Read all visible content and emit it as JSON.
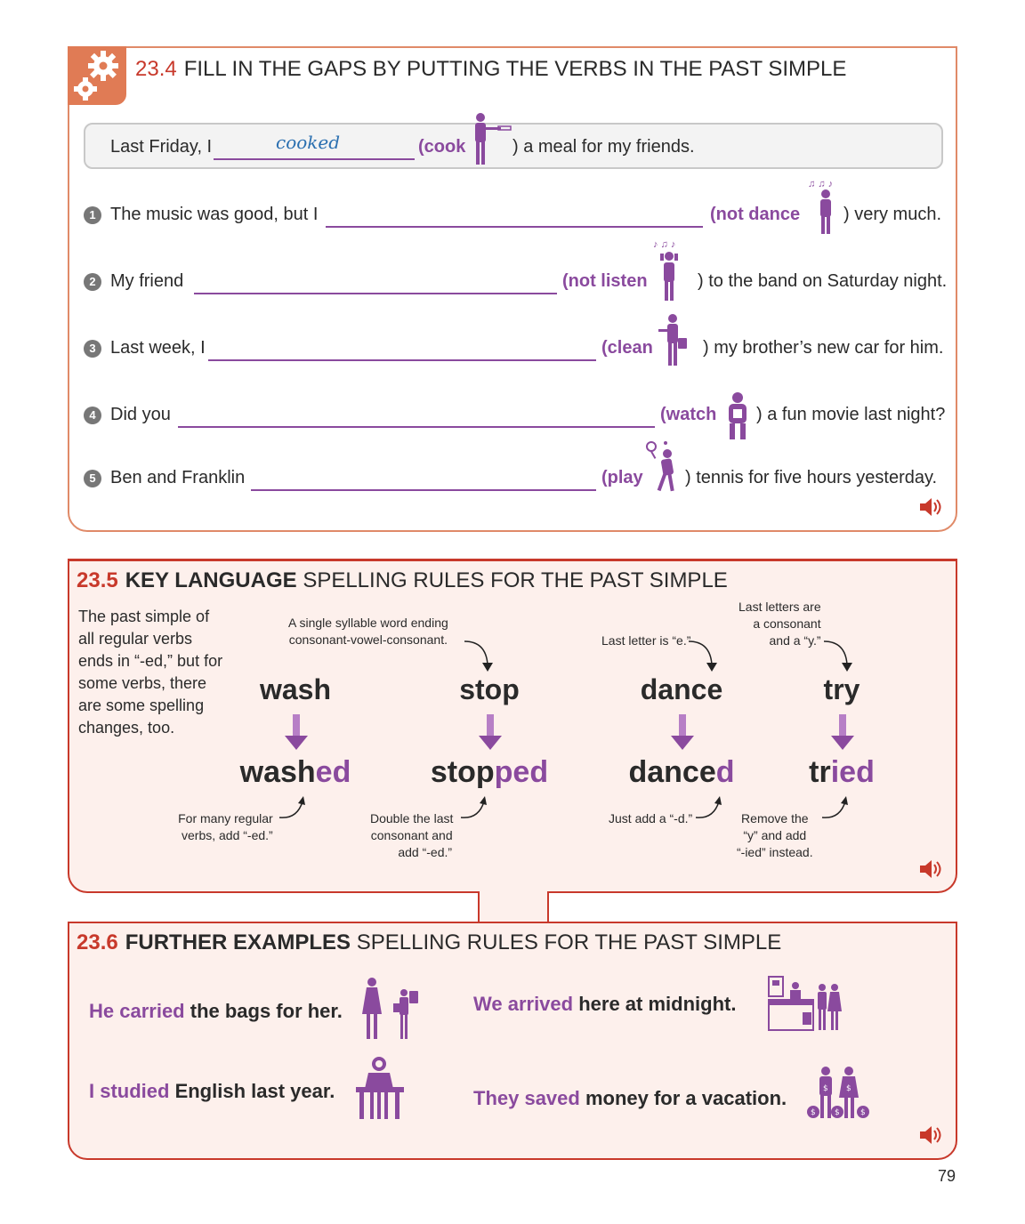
{
  "section4": {
    "number": "23.4",
    "title": "FILL IN THE GAPS BY PUTTING THE VERBS IN THE PAST SIMPLE",
    "example": {
      "before": "Last Friday, I",
      "answer": "cooked",
      "verb": "(cook",
      "after": ") a meal for my friends.",
      "icon": "person-cooking-icon"
    },
    "items": [
      {
        "n": "1",
        "before": "The music was good, but I",
        "verb": "(not dance",
        "after": ") very much.",
        "icon": "person-dancing-icon"
      },
      {
        "n": "2",
        "before": "My friend",
        "verb": "(not listen",
        "after": ") to the band on Saturday night.",
        "icon": "person-covering-ears-icon"
      },
      {
        "n": "3",
        "before": "Last week, I",
        "verb": "(clean",
        "after": ") my brother’s new car for him.",
        "icon": "person-with-bucket-icon"
      },
      {
        "n": "4",
        "before": "Did you",
        "verb": "(watch",
        "after": ") a fun movie last night?",
        "icon": "person-watching-icon"
      },
      {
        "n": "5",
        "before": "Ben and Franklin",
        "verb": "(play",
        "after": ") tennis for five hours yesterday.",
        "icon": "person-playing-tennis-icon"
      }
    ]
  },
  "section5": {
    "number": "23.5",
    "keyword": "KEY LANGUAGE",
    "title": "SPELLING RULES FOR THE PAST SIMPLE",
    "intro": "The past simple of all regular verbs ends in “-ed,” but for some verbs, there are some spelling changes, too.",
    "verbs": [
      {
        "base": "wash",
        "stem": "wash",
        "ending": "ed",
        "note_top": "",
        "note_bottom": [
          "For many regular",
          "verbs, add “-ed.”"
        ]
      },
      {
        "base": "stop",
        "stem": "stop",
        "ending": "ped",
        "note_top": [
          "A single syllable word ending",
          "consonant-vowel-consonant."
        ],
        "note_bottom": [
          "Double the last",
          "consonant and",
          "add “-ed.”"
        ]
      },
      {
        "base": "dance",
        "stem": "dance",
        "ending": "d",
        "note_top": [
          "Last letter is “e.”"
        ],
        "note_bottom": [
          "Just add a “-d.”"
        ]
      },
      {
        "base": "try",
        "stem": "tr",
        "ending": "ied",
        "note_top": [
          "Last letters are",
          "a consonant",
          "and a “y.”"
        ],
        "note_bottom": [
          "Remove the",
          "“y” and add",
          "“-ied” instead."
        ]
      }
    ]
  },
  "section6": {
    "number": "23.6",
    "keyword": "FURTHER EXAMPLES",
    "title": "SPELLING RULES FOR THE PAST SIMPLE",
    "examples": [
      {
        "subject_verb": "He carried",
        "rest": " the bags for her.",
        "icon": "carrying-bags-icon"
      },
      {
        "subject_verb": "We arrived",
        "rest": " here at midnight.",
        "icon": "hotel-reception-icon"
      },
      {
        "subject_verb": "I studied",
        "rest": " English last year.",
        "icon": "student-at-desk-icon"
      },
      {
        "subject_verb": "They saved",
        "rest": " money for a vacation.",
        "icon": "couple-with-money-bags-icon"
      }
    ]
  },
  "page_number": "79",
  "colors": {
    "purple": "#8a4a9e",
    "red": "#c8392b",
    "orange": "#e07b55",
    "pink_bg": "#fdf0ec"
  }
}
